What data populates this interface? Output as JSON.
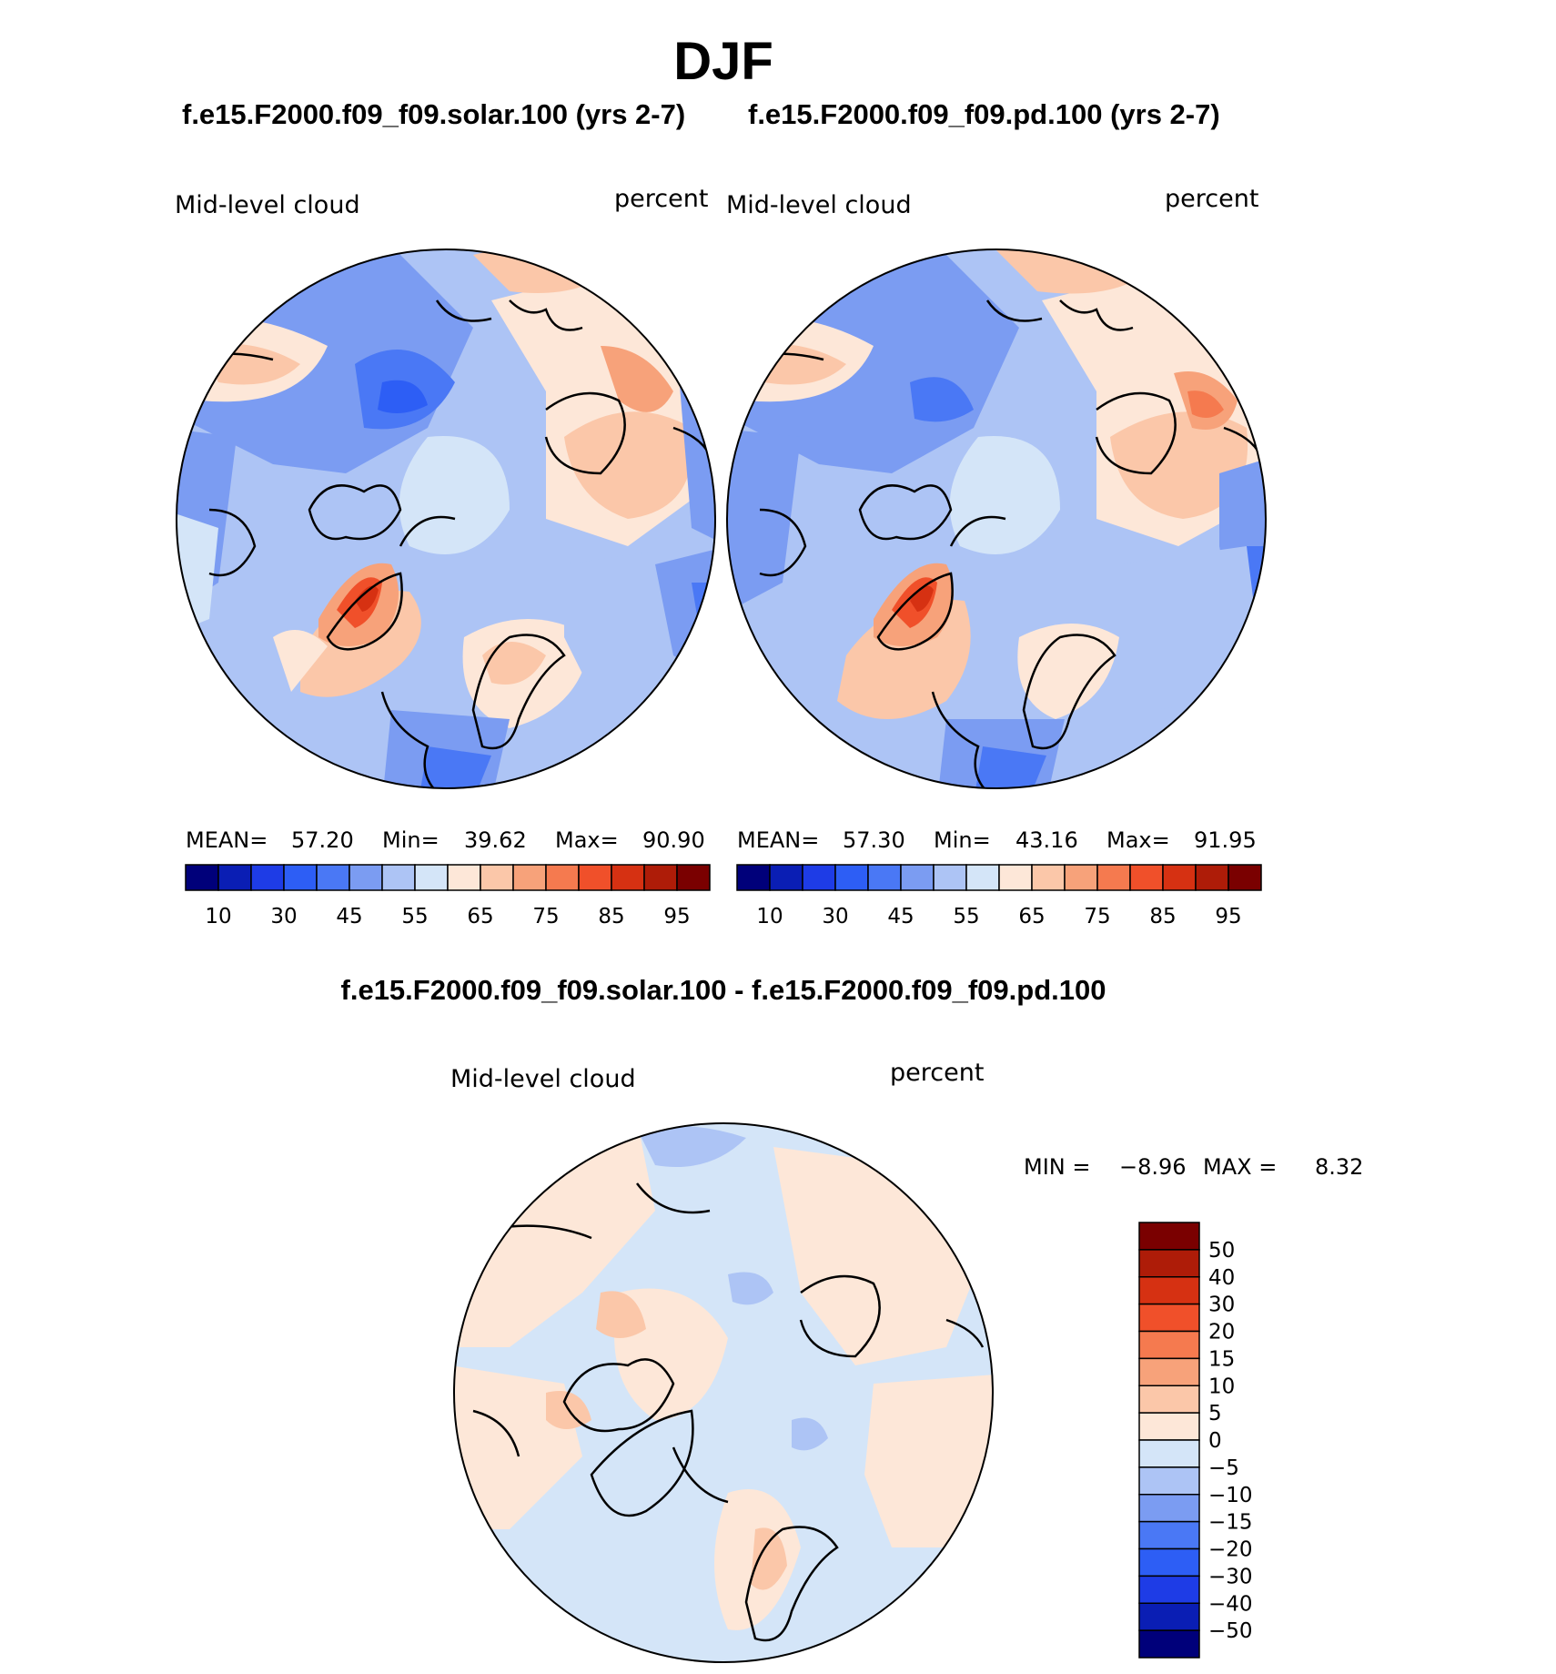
{
  "header": {
    "season": "DJF"
  },
  "panels": [
    {
      "case_title": "f.e15.F2000.f09_f09.solar.100 (yrs 2-7)",
      "variable_label": "Mid-level cloud",
      "units_label": "percent",
      "stats": {
        "mean_label": "MEAN=",
        "mean": "57.20",
        "min_label": "Min=",
        "min": "39.62",
        "max_label": "Max=",
        "max": "90.90"
      }
    },
    {
      "case_title": "f.e15.F2000.f09_f09.pd.100 (yrs 2-7)",
      "variable_label": "Mid-level cloud",
      "units_label": "percent",
      "stats": {
        "mean_label": "MEAN=",
        "mean": "57.30",
        "min_label": "Min=",
        "min": "43.16",
        "max_label": "Max=",
        "max": "91.95"
      }
    }
  ],
  "diff_panel": {
    "title": "f.e15.F2000.f09_f09.solar.100 - f.e15.F2000.f09_f09.pd.100",
    "variable_label": "Mid-level cloud",
    "units_label": "percent",
    "stats": {
      "min_label": "MIN =",
      "min": "−8.96",
      "max_label": "MAX =",
      "max": "8.32"
    }
  },
  "chart_data": [
    {
      "type": "heatmap",
      "projection": "north polar stereographic",
      "title": "f.e15.F2000.f09_f09.solar.100 (yrs 2-7)",
      "variable": "Mid-level cloud",
      "units": "percent",
      "mean": 57.2,
      "min": 39.62,
      "max": 90.9,
      "colorbar": {
        "levels": [
          10,
          20,
          30,
          40,
          45,
          50,
          55,
          60,
          65,
          70,
          75,
          80,
          85,
          90,
          95
        ],
        "tick_labels": [
          "10",
          "30",
          "45",
          "55",
          "65",
          "75",
          "85",
          "95"
        ],
        "colors": [
          "#00007a",
          "#0a1eb4",
          "#1e3ce6",
          "#2d5ef5",
          "#4a78f5",
          "#7b9cf2",
          "#adc4f5",
          "#d4e5f8",
          "#fde7d8",
          "#fbc7a9",
          "#f7a27a",
          "#f57a4f",
          "#f0502a",
          "#d63112",
          "#ae1c08",
          "#7a0000"
        ]
      }
    },
    {
      "type": "heatmap",
      "projection": "north polar stereographic",
      "title": "f.e15.F2000.f09_f09.pd.100 (yrs 2-7)",
      "variable": "Mid-level cloud",
      "units": "percent",
      "mean": 57.3,
      "min": 43.16,
      "max": 91.95,
      "colorbar": {
        "levels": [
          10,
          20,
          30,
          40,
          45,
          50,
          55,
          60,
          65,
          70,
          75,
          80,
          85,
          90,
          95
        ],
        "tick_labels": [
          "10",
          "30",
          "45",
          "55",
          "65",
          "75",
          "85",
          "95"
        ],
        "colors": [
          "#00007a",
          "#0a1eb4",
          "#1e3ce6",
          "#2d5ef5",
          "#4a78f5",
          "#7b9cf2",
          "#adc4f5",
          "#d4e5f8",
          "#fde7d8",
          "#fbc7a9",
          "#f7a27a",
          "#f57a4f",
          "#f0502a",
          "#d63112",
          "#ae1c08",
          "#7a0000"
        ]
      }
    },
    {
      "type": "heatmap",
      "projection": "north polar stereographic",
      "title": "f.e15.F2000.f09_f09.solar.100 - f.e15.F2000.f09_f09.pd.100",
      "variable": "Mid-level cloud",
      "units": "percent",
      "min": -8.96,
      "max": 8.32,
      "colorbar": {
        "orientation": "vertical",
        "levels": [
          50,
          40,
          30,
          20,
          15,
          10,
          5,
          0,
          -5,
          -10,
          -15,
          -20,
          -30,
          -40,
          -50
        ],
        "tick_labels": [
          "50",
          "40",
          "30",
          "20",
          "15",
          "10",
          "5",
          "0",
          "−5",
          "−10",
          "−15",
          "−20",
          "−30",
          "−40",
          "−50"
        ],
        "colors": [
          "#7a0000",
          "#ae1c08",
          "#d63112",
          "#f0502a",
          "#f57a4f",
          "#f7a27a",
          "#fbc7a9",
          "#fde7d8",
          "#d4e5f8",
          "#adc4f5",
          "#7b9cf2",
          "#4a78f5",
          "#2d5ef5",
          "#1e3ce6",
          "#0a1eb4",
          "#00007a"
        ]
      }
    }
  ]
}
